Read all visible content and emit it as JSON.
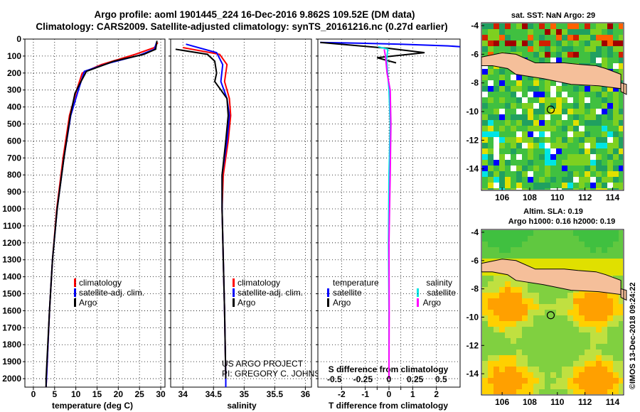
{
  "header": {
    "title_line1": "Argo profile: aoml 1901445_224 16-Dec-2016 9.862S 109.52E (DM data)",
    "title_line2": "Climatology: CARS2009. Satellite-adjusted climatology: synTS_20161216.nc (0.27d earlier)"
  },
  "colors": {
    "climatology": "#ff0000",
    "satellite": "#0000ff",
    "argo": "#000000",
    "satellite_salinity": "#00e5e5",
    "argo_salinity_diff": "#ff00ff",
    "land": "#f5bf9a"
  },
  "credits": {
    "project": "US ARGO PROJECT",
    "pi": "PI: GREGORY C. JOHNSON",
    "imos": "©IMOS 13-Dec-2018 09:24:22"
  },
  "chart_data": [
    {
      "type": "line",
      "id": "temperature",
      "xlabel": "temperature (deg C)",
      "ylabel": "",
      "xlim": [
        -2,
        31
      ],
      "ylim": [
        2050,
        0
      ],
      "xticks": [
        "0",
        "5",
        "10",
        "15",
        "20",
        "25",
        "30"
      ],
      "yticks": [
        "0",
        "100",
        "200",
        "300",
        "400",
        "500",
        "600",
        "700",
        "800",
        "900",
        "1000",
        "1100",
        "1200",
        "1300",
        "1400",
        "1500",
        "1600",
        "1700",
        "1800",
        "1900",
        "2000"
      ],
      "legend": [
        "climatology",
        "satellite-adj. clim.",
        "Argo"
      ],
      "series": [
        {
          "name": "climatology",
          "color": "red",
          "points": [
            [
              29.3,
              20
            ],
            [
              28.5,
              50
            ],
            [
              24,
              90
            ],
            [
              16,
              150
            ],
            [
              11.5,
              200
            ],
            [
              10.2,
              300
            ],
            [
              8.5,
              450
            ],
            [
              7,
              700
            ],
            [
              5.5,
              1000
            ],
            [
              4.5,
              1300
            ],
            [
              3.8,
              1600
            ],
            [
              3.1,
              2000
            ],
            [
              3,
              2050
            ]
          ]
        },
        {
          "name": "satellite-adj. clim.",
          "color": "blue",
          "points": [
            [
              29.0,
              20
            ],
            [
              28.5,
              60
            ],
            [
              25,
              95
            ],
            [
              18,
              140
            ],
            [
              12,
              190
            ],
            [
              10.6,
              300
            ],
            [
              8.8,
              450
            ],
            [
              7.2,
              700
            ],
            [
              5.6,
              1000
            ],
            [
              4.5,
              1300
            ],
            [
              3.8,
              1600
            ],
            [
              3.1,
              2000
            ],
            [
              3,
              2050
            ]
          ]
        },
        {
          "name": "Argo",
          "color": "black",
          "points": [
            [
              29.1,
              10
            ],
            [
              28.8,
              60
            ],
            [
              26,
              90
            ],
            [
              19,
              130
            ],
            [
              12.5,
              190
            ],
            [
              11,
              260
            ],
            [
              9.8,
              320
            ],
            [
              8.7,
              450
            ],
            [
              7.2,
              700
            ],
            [
              5.6,
              1000
            ],
            [
              4.5,
              1300
            ],
            [
              3.8,
              1600
            ],
            [
              3,
              2000
            ],
            [
              3,
              2050
            ]
          ]
        }
      ]
    },
    {
      "type": "line",
      "id": "salinity",
      "xlabel": "salinity",
      "ylabel": "",
      "xlim": [
        33.8,
        36.1
      ],
      "ylim": [
        2050,
        0
      ],
      "xticks": [
        "34",
        "34.5",
        "35",
        "35.5",
        "36"
      ],
      "legend": [
        "climatology",
        "satellite-adj. clim.",
        "Argo"
      ],
      "series": [
        {
          "name": "climatology",
          "color": "red",
          "points": [
            [
              34.0,
              50
            ],
            [
              34.6,
              90
            ],
            [
              34.72,
              150
            ],
            [
              34.68,
              250
            ],
            [
              34.76,
              350
            ],
            [
              34.78,
              450
            ],
            [
              34.74,
              600
            ],
            [
              34.66,
              800
            ],
            [
              34.64,
              1000
            ],
            [
              34.66,
              1300
            ],
            [
              34.68,
              1600
            ],
            [
              34.7,
              2000
            ],
            [
              34.7,
              2050
            ]
          ]
        },
        {
          "name": "satellite-adj. clim.",
          "color": "blue",
          "points": [
            [
              34.05,
              30
            ],
            [
              34.55,
              80
            ],
            [
              34.65,
              150
            ],
            [
              34.62,
              250
            ],
            [
              34.72,
              350
            ],
            [
              34.76,
              450
            ],
            [
              34.72,
              600
            ],
            [
              34.64,
              800
            ],
            [
              34.64,
              1000
            ],
            [
              34.66,
              1300
            ],
            [
              34.68,
              1600
            ],
            [
              34.7,
              2000
            ],
            [
              34.7,
              2050
            ]
          ]
        },
        {
          "name": "Argo",
          "color": "black",
          "points": [
            [
              33.88,
              60
            ],
            [
              34.4,
              90
            ],
            [
              34.52,
              130
            ],
            [
              34.55,
              200
            ],
            [
              34.52,
              250
            ],
            [
              34.62,
              300
            ],
            [
              34.72,
              350
            ],
            [
              34.74,
              450
            ],
            [
              34.7,
              600
            ],
            [
              34.64,
              800
            ],
            [
              34.64,
              1000
            ],
            [
              34.66,
              1300
            ],
            [
              34.68,
              1600
            ],
            [
              34.7,
              2000
            ]
          ]
        }
      ]
    },
    {
      "type": "line",
      "id": "differences",
      "xlabel": "T difference from climatology",
      "ylabel": "",
      "xlim": [
        -3,
        3
      ],
      "ylim": [
        2050,
        0
      ],
      "xticks": [
        "-2",
        "-1",
        "0",
        "1",
        "2"
      ],
      "secondary_xlabel": "S difference from climatology",
      "secondary_xticks": [
        "-0.5",
        "-0.25",
        "0",
        "0.25",
        "0.5"
      ],
      "legend_left_title": "temperature",
      "legend_right_title": "salinity",
      "legend_left": [
        "satellite",
        "Argo"
      ],
      "legend_right": [
        "satellite",
        "Argo"
      ],
      "series": [
        {
          "name": "temperature satellite",
          "color": "blue",
          "points": [
            [
              -2.9,
              20
            ],
            [
              -1,
              25
            ],
            [
              0.5,
              30
            ],
            [
              2.5,
              40
            ],
            [
              3,
              45
            ]
          ]
        },
        {
          "name": "temperature Argo",
          "color": "black",
          "points": [
            [
              -2.9,
              20
            ],
            [
              0,
              55
            ],
            [
              1.5,
              80
            ],
            [
              -0.5,
              110
            ],
            [
              0.3,
              140
            ]
          ]
        },
        {
          "name": "salinity satellite",
          "color": "cyan",
          "points": [
            [
              -0.45,
              45
            ],
            [
              -0.05,
              60
            ],
            [
              -0.1,
              120
            ],
            [
              0.0,
              300
            ],
            [
              0.05,
              500
            ],
            [
              0.0,
              800
            ],
            [
              -0.02,
              1200
            ],
            [
              0,
              1600
            ],
            [
              0,
              2000
            ]
          ]
        },
        {
          "name": "salinity Argo",
          "color": "magenta",
          "points": [
            [
              -0.2,
              60
            ],
            [
              -0.15,
              100
            ],
            [
              -0.08,
              200
            ],
            [
              0.05,
              300
            ],
            [
              0.08,
              500
            ],
            [
              0.05,
              800
            ],
            [
              0.0,
              1200
            ],
            [
              0.01,
              1600
            ],
            [
              0,
              2000
            ]
          ]
        }
      ]
    },
    {
      "type": "heatmap",
      "id": "sst_map",
      "title": "sat. SST: NaN Argo: 29",
      "xticks": [
        "106",
        "108",
        "110",
        "112",
        "114"
      ],
      "yticks": [
        "-4",
        "-6",
        "-8",
        "-10",
        "-12",
        "-14"
      ],
      "argo_position": [
        109.52,
        -9.862
      ]
    },
    {
      "type": "heatmap",
      "id": "sla_map",
      "title": "Altim. SLA: 0.19",
      "subtitle": "Argo h1000: 0.16 h2000: 0.19",
      "xticks": [
        "106",
        "108",
        "110",
        "112",
        "114"
      ],
      "yticks": [
        "-4",
        "-6",
        "-8",
        "-10",
        "-12",
        "-14"
      ],
      "argo_position": [
        109.52,
        -9.862
      ]
    }
  ]
}
